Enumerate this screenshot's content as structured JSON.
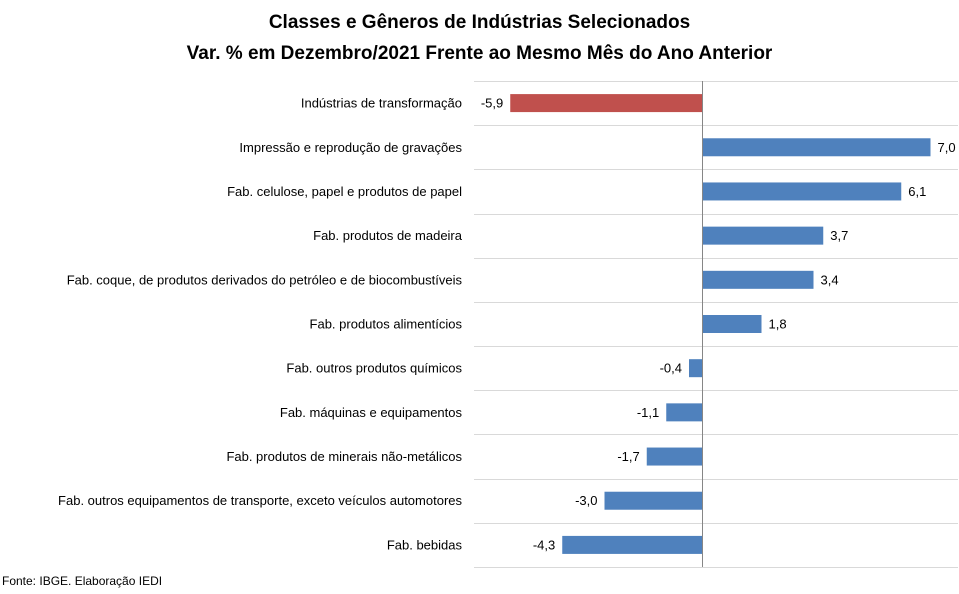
{
  "chart_data": {
    "type": "bar",
    "orientation": "horizontal",
    "title": [
      "Classes e Gêneros de Indústrias Selecionados",
      "Var. % em Dezembro/2021 Frente ao Mesmo Mês do Ano Anterior"
    ],
    "categories": [
      "Indústrias de transformação",
      "Impressão e reprodução de gravações",
      "Fab. celulose, papel e produtos de papel",
      "Fab. produtos de madeira",
      "Fab. coque, de produtos derivados do petróleo e de biocombustíveis",
      "Fab. produtos alimentícios",
      "Fab. outros produtos químicos",
      "Fab. máquinas e equipamentos",
      "Fab. produtos de minerais não-metálicos",
      "Fab. outros equipamentos de transporte, exceto veículos automotores",
      "Fab. bebidas"
    ],
    "values": [
      -5.9,
      7.0,
      6.1,
      3.7,
      3.4,
      1.8,
      -0.4,
      -1.1,
      -1.7,
      -3.0,
      -4.3
    ],
    "value_labels": [
      "-5,9",
      "7,0",
      "6,1",
      "3,7",
      "3,4",
      "1,8",
      "-0,4",
      "-1,1",
      "-1,7",
      "-3,0",
      "-4,3"
    ],
    "colors": {
      "highlight": "#C0504D",
      "default": "#4F81BD",
      "grid": "#D9D9D9",
      "axis": "#868686"
    },
    "highlight_index": 0,
    "grid": true,
    "legend": "none"
  },
  "source": "Fonte: IBGE. Elaboração IEDI"
}
